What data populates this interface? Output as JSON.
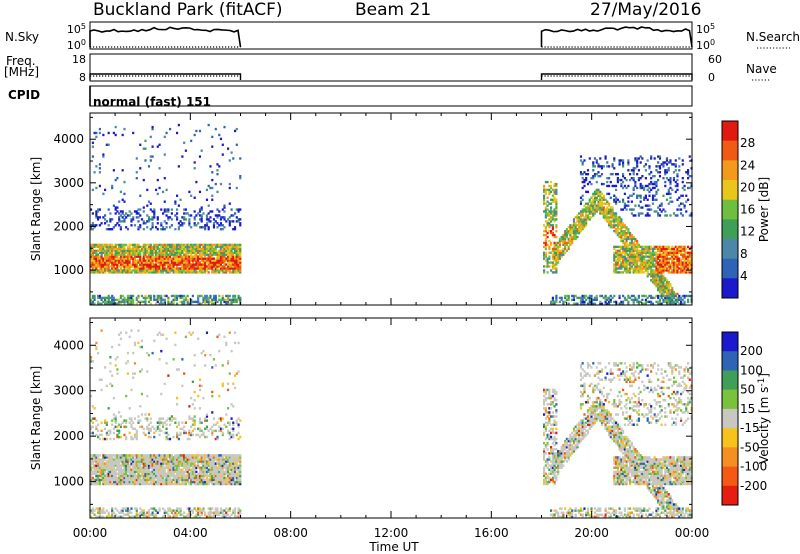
{
  "header": {
    "station": "Buckland Park (fitACF)",
    "beam": "Beam 21",
    "date": "27/May/2016"
  },
  "side_labels": {
    "nsky": "N.Sky",
    "freq_line1": "Freq.",
    "freq_line2": "[MHz]",
    "cpid": "CPID",
    "nsearch": "N.Search",
    "nave": "Nave",
    "cpid_text": "normal (fast) 151"
  },
  "colors": {
    "power": [
      "#1a1acc",
      "#2e63b5",
      "#4c86a8",
      "#3f9e58",
      "#6fbf3e",
      "#e9c71a",
      "#f39a1c",
      "#f05a14",
      "#e01a10"
    ],
    "velocity": [
      "#e61e12",
      "#f25a16",
      "#f58f22",
      "#f6c21c",
      "#c8c8c0",
      "#78c23c",
      "#3f9e58",
      "#2e63b5",
      "#1a1acc"
    ]
  },
  "chart_data": [
    {
      "type": "line",
      "title": "N.Sky / N.Search",
      "left_ticks": [
        "10^5",
        "10^0"
      ],
      "right_ticks": [
        "10^5",
        "10^0"
      ],
      "x": [
        "00:00",
        "06:00",
        "18:00",
        "24:00"
      ],
      "on_intervals_hours": [
        [
          0,
          6
        ],
        [
          18,
          24
        ]
      ]
    },
    {
      "type": "line",
      "title": "Freq. / Nave",
      "left_ticks": [
        "18",
        "8"
      ],
      "right_ticks": [
        "60",
        "0"
      ],
      "on_intervals_hours": [
        [
          0,
          6
        ],
        [
          18,
          24
        ]
      ]
    },
    {
      "type": "heatmap",
      "ylabel": "Slant Range [km]",
      "xlabel": "Time UT",
      "x_ticks": [
        "00:00",
        "04:00",
        "08:00",
        "12:00",
        "16:00",
        "20:00",
        "00:00"
      ],
      "y_ticks": [
        1000,
        2000,
        3000,
        4000
      ],
      "ylim": [
        200,
        4600
      ],
      "colorbar_label": "Power [dB]",
      "colorbar_ticks": [
        4,
        8,
        12,
        16,
        20,
        24,
        28
      ],
      "data_hours": [
        [
          0,
          6
        ],
        [
          18,
          24
        ]
      ]
    },
    {
      "type": "heatmap",
      "ylabel": "Slant Range [km]",
      "xlabel": "Time UT",
      "x_ticks": [
        "00:00",
        "04:00",
        "08:00",
        "12:00",
        "16:00",
        "20:00",
        "00:00"
      ],
      "y_ticks": [
        1000,
        2000,
        3000,
        4000
      ],
      "ylim": [
        200,
        4600
      ],
      "colorbar_label": "Velocity [m s^-1]",
      "colorbar_ticks": [
        "200",
        "100",
        "50",
        "15",
        "-15",
        "-50",
        "-100",
        "-200"
      ],
      "data_hours": [
        [
          0,
          6
        ],
        [
          18,
          24
        ]
      ]
    }
  ]
}
